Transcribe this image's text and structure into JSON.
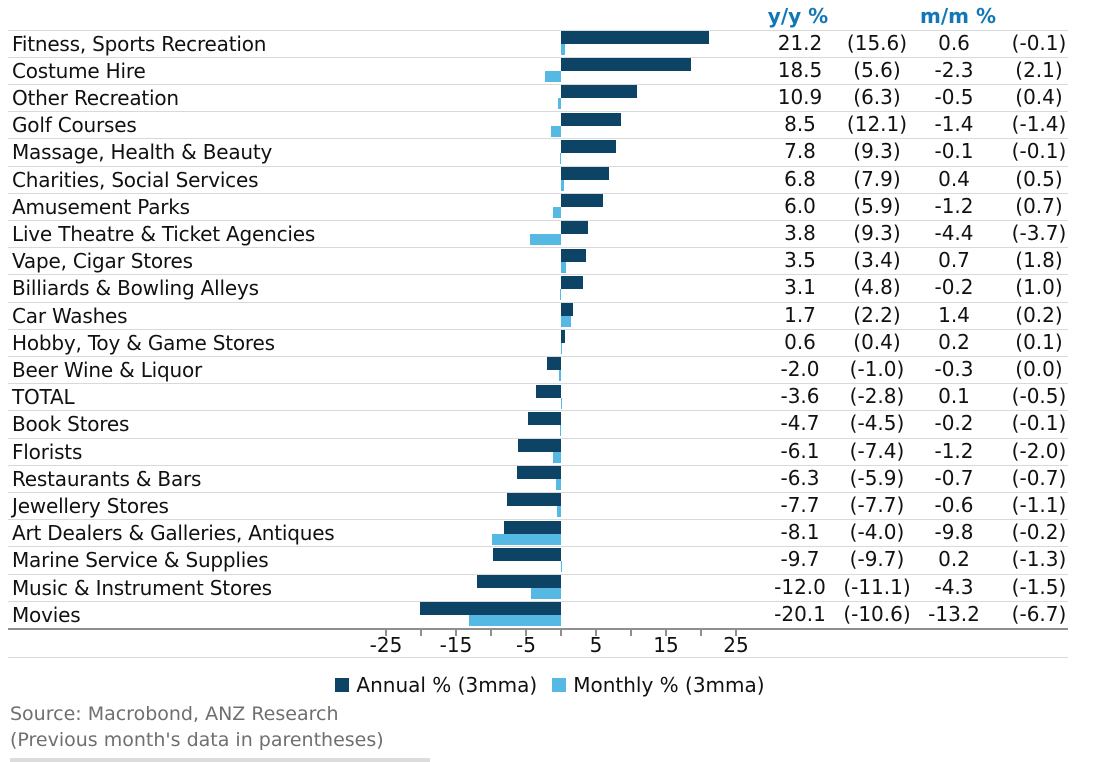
{
  "colors": {
    "annual_bar": "#0d4365",
    "monthly_bar": "#55b9e3",
    "header_text": "#1377b6",
    "grid": "#d9d9d9",
    "axis": "#8f8f8f",
    "source_text": "#6f6f6f"
  },
  "legend": {
    "annual": "Annual % (3mma)",
    "monthly": "Monthly % (3mma)"
  },
  "source": {
    "line1": "Source: Macrobond, ANZ Research",
    "line2": "(Previous month's data in parentheses)"
  },
  "chart_data": {
    "type": "bar",
    "orientation": "horizontal",
    "title": "",
    "xlabel": "",
    "ylabel": "",
    "value_columns": [
      "y/y %",
      "m/m %"
    ],
    "x_ticks": [
      -25,
      -15,
      -5,
      5,
      15,
      25
    ],
    "x_minor_tick_step": 5,
    "xlim": [
      -30,
      31
    ],
    "grid": false,
    "legend": [
      "Annual % (3mma)",
      "Monthly % (3mma)"
    ],
    "legend_position": "bottom",
    "categories": [
      "Fitness, Sports Recreation",
      "Costume Hire",
      "Other Recreation",
      "Golf Courses",
      "Massage, Health & Beauty",
      "Charities, Social Services",
      "Amusement Parks",
      "Live Theatre & Ticket Agencies",
      "Vape, Cigar Stores",
      "Billiards & Bowling Alleys",
      "Car Washes",
      "Hobby, Toy & Game Stores",
      "Beer Wine & Liquor",
      "TOTAL",
      "Book Stores",
      "Florists",
      "Restaurants & Bars",
      "Jewellery Stores",
      "Art Dealers & Galleries, Antiques",
      "Marine Service & Supplies",
      "Music & Instrument Stores",
      "Movies"
    ],
    "series": [
      {
        "name": "Annual % (3mma) y/y",
        "values": [
          21.2,
          18.5,
          10.9,
          8.5,
          7.8,
          6.8,
          6.0,
          3.8,
          3.5,
          3.1,
          1.7,
          0.6,
          -2.0,
          -3.6,
          -4.7,
          -6.1,
          -6.3,
          -7.7,
          -8.1,
          -9.7,
          -12.0,
          -20.1
        ]
      },
      {
        "name": "Annual % previous month y/y",
        "values": [
          15.6,
          5.6,
          6.3,
          12.1,
          9.3,
          7.9,
          5.9,
          9.3,
          3.4,
          4.8,
          2.2,
          0.4,
          -1.0,
          -2.8,
          -4.5,
          -7.4,
          -5.9,
          -7.7,
          -4.0,
          -9.7,
          -11.1,
          -10.6
        ]
      },
      {
        "name": "Monthly % (3mma) m/m",
        "values": [
          0.6,
          -2.3,
          -0.5,
          -1.4,
          -0.1,
          0.4,
          -1.2,
          -4.4,
          0.7,
          -0.2,
          1.4,
          0.2,
          -0.3,
          0.1,
          -0.2,
          -1.2,
          -0.7,
          -0.6,
          -9.8,
          0.2,
          -4.3,
          -13.2
        ]
      },
      {
        "name": "Monthly % previous month m/m",
        "values": [
          -0.1,
          2.1,
          0.4,
          -1.4,
          -0.1,
          0.5,
          0.7,
          -3.7,
          1.8,
          1.0,
          0.2,
          0.1,
          0.0,
          -0.5,
          -0.1,
          -2.0,
          -0.7,
          -1.1,
          -0.2,
          -1.3,
          -1.5,
          -6.7
        ]
      }
    ]
  }
}
